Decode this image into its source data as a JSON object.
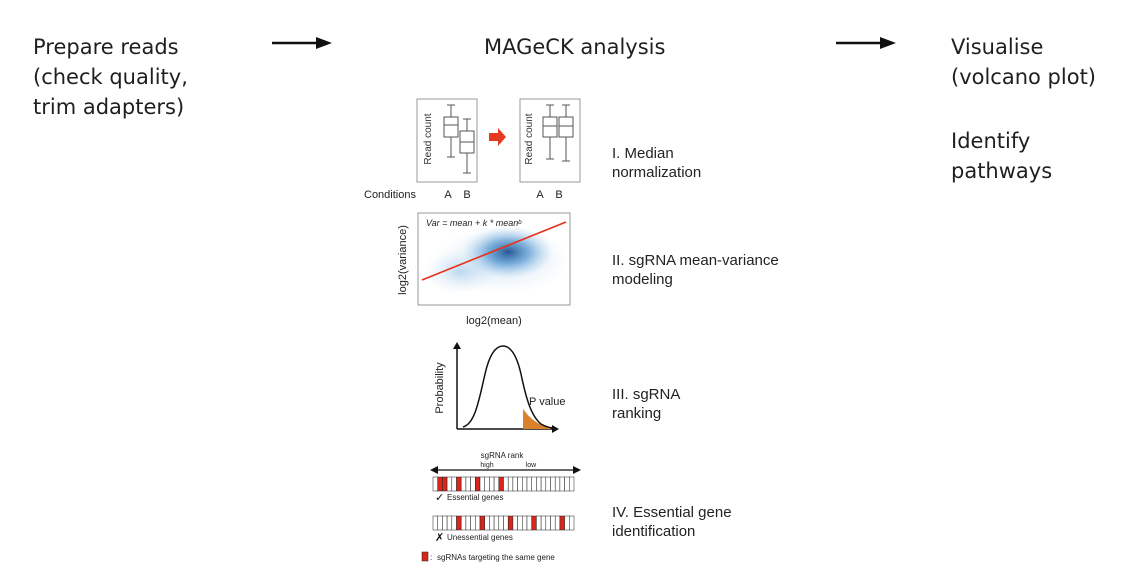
{
  "steps": [
    {
      "id": "prepare",
      "lines": [
        "Prepare reads",
        "(check quality,",
        "trim adapters)"
      ]
    },
    {
      "id": "analysis",
      "lines": [
        "MAGeCK analysis"
      ]
    },
    {
      "id": "visualise",
      "lines": [
        "Visualise",
        "(volcano plot)"
      ]
    },
    {
      "id": "pathways",
      "lines": [
        "Identify",
        "pathways"
      ]
    }
  ],
  "stages": [
    {
      "lines": [
        "I. Median",
        "normalization"
      ]
    },
    {
      "lines": [
        "II. sgRNA mean-variance",
        "modeling"
      ]
    },
    {
      "lines": [
        "III. sgRNA",
        "ranking"
      ]
    },
    {
      "lines": [
        "IV. Essential gene",
        "identification"
      ]
    }
  ],
  "panel1": {
    "y_label": "Read count",
    "x_label": "Conditions",
    "conditions": [
      "A",
      "B"
    ],
    "arrow_color": "#e53a1e"
  },
  "panel2": {
    "formula": "Var = mean + k * meanᵇ",
    "y_label": "log2(variance)",
    "x_label": "log2(mean)",
    "fit_color": "#e8301a",
    "cloud_color": "#2f7fc1"
  },
  "panel3": {
    "y_label": "Probability",
    "annotation": "P value",
    "tail_color": "#d9822b"
  },
  "panel4": {
    "rank_title": "sgRNA rank",
    "high_label": "high",
    "low_label": "low",
    "essential_label": "Essential genes",
    "unessential_label": "Unessential genes",
    "check_mark": "✓",
    "cross_mark": "✗",
    "legend": "sgRNAs targeting the same gene",
    "legend_sep": ":",
    "highlight_color": "#d8261c"
  }
}
